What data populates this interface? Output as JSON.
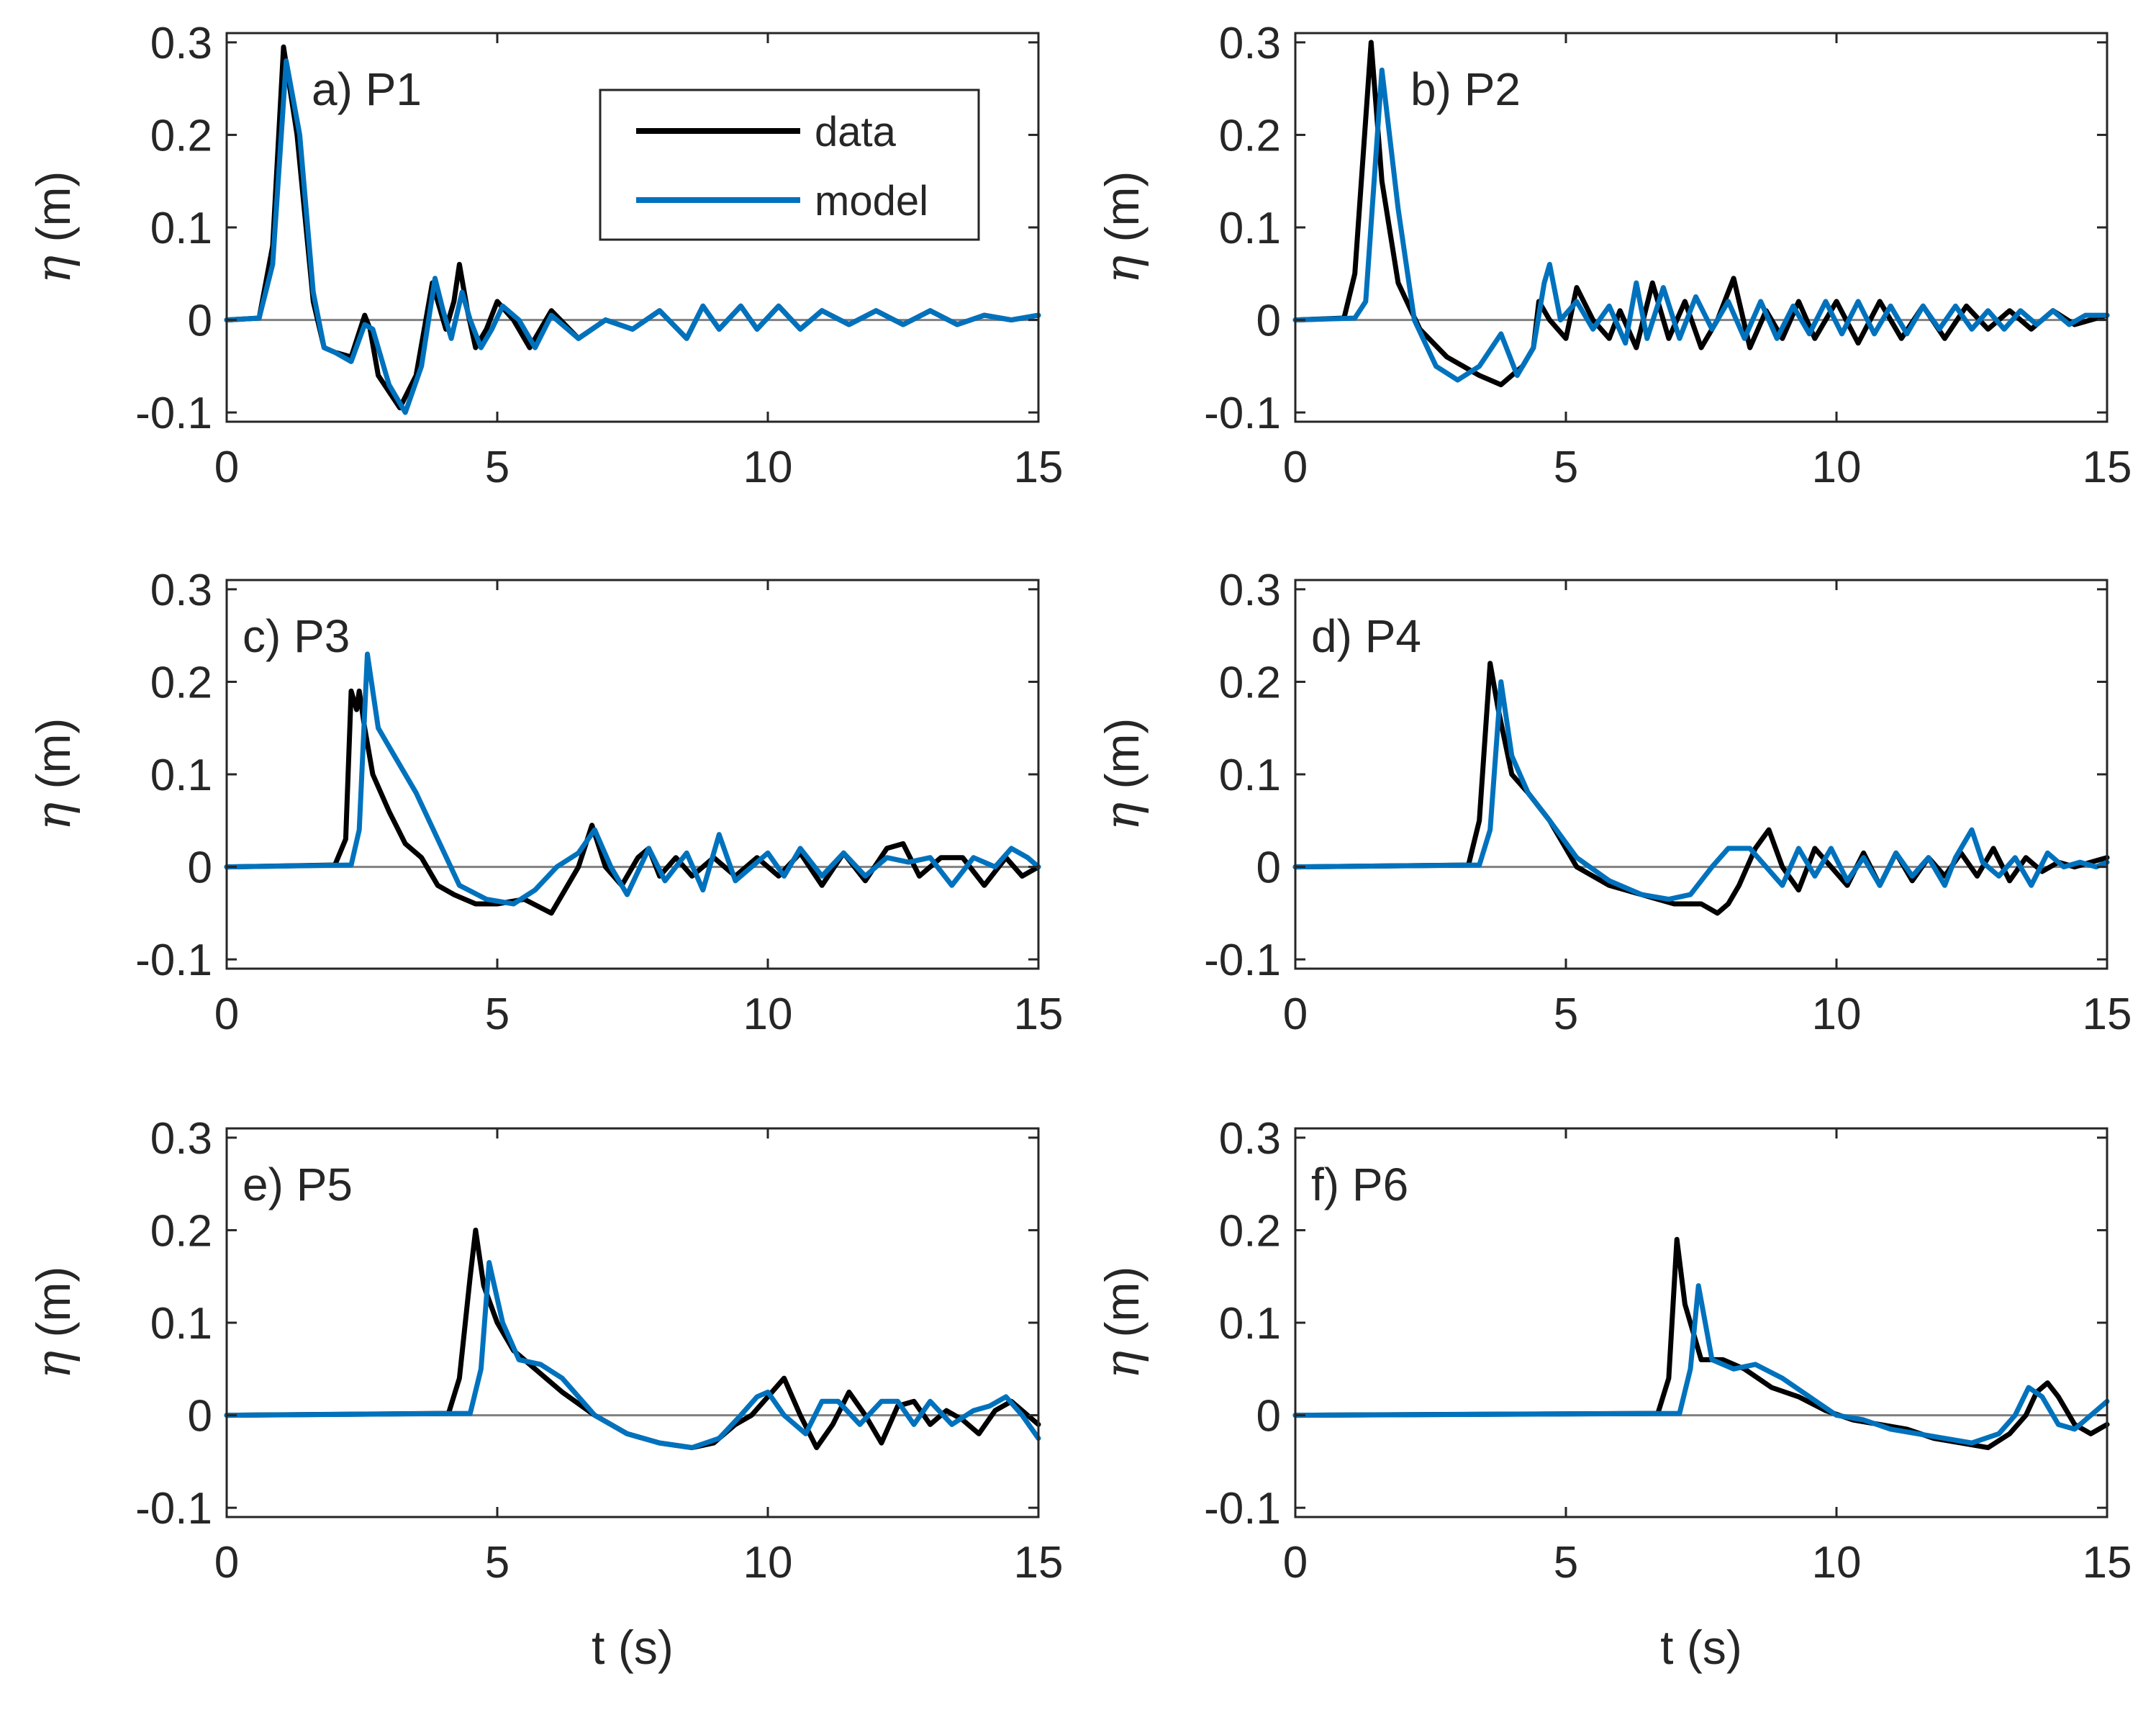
{
  "chart_data": {
    "type": "line",
    "layout": "3x2 grid of subplots",
    "xlabel": "t (s)",
    "ylabel_symbol": "η",
    "ylabel_unit": "(m)",
    "xlim": [
      0,
      15
    ],
    "ylim": [
      -0.11,
      0.31
    ],
    "xticks": [
      "0",
      "5",
      "10",
      "15"
    ],
    "yticks": [
      "-0.1",
      "0",
      "0.1",
      "0.2",
      "0.3"
    ],
    "xtick_values": [
      0,
      5,
      10,
      15
    ],
    "ytick_values": [
      -0.1,
      0,
      0.1,
      0.2,
      0.3
    ],
    "legend": [
      {
        "name": "data",
        "color": "#000000"
      },
      {
        "name": "model",
        "color": "#0072BD"
      }
    ],
    "zero_line_color": "#808080",
    "panels": [
      {
        "label": "a) P1",
        "data": {
          "t": [
            0,
            0.6,
            0.85,
            1.05,
            1.3,
            1.6,
            1.8,
            2.0,
            2.3,
            2.55,
            2.65,
            2.8,
            3.2,
            3.5,
            3.8,
            3.9,
            4.05,
            4.2,
            4.3,
            4.45,
            4.6,
            4.8,
            5.0,
            5.3,
            5.6,
            6.0,
            6.5,
            7.0,
            7.5,
            8.0,
            8.5,
            8.8,
            9.1,
            9.5,
            9.8,
            10.2,
            10.6,
            11.0,
            11.5,
            12.0,
            12.5,
            13.0,
            13.5,
            14.0,
            14.5,
            15.0
          ],
          "eta": [
            0,
            0.002,
            0.08,
            0.295,
            0.2,
            0.02,
            -0.03,
            -0.035,
            -0.04,
            0.005,
            -0.01,
            -0.06,
            -0.095,
            -0.06,
            0.04,
            0.02,
            -0.01,
            0.02,
            0.06,
            0.01,
            -0.03,
            -0.01,
            0.02,
            0.0,
            -0.03,
            0.01,
            -0.02,
            0.0,
            -0.01,
            0.01,
            -0.02,
            0.015,
            -0.01,
            0.015,
            -0.01,
            0.015,
            -0.01,
            0.01,
            -0.005,
            0.01,
            -0.005,
            0.01,
            -0.005,
            0.005,
            0.0,
            0.005
          ]
        },
        "model": {
          "t": [
            0,
            0.6,
            0.85,
            1.1,
            1.35,
            1.6,
            1.8,
            2.0,
            2.3,
            2.55,
            2.7,
            3.0,
            3.3,
            3.6,
            3.85,
            4.0,
            4.15,
            4.35,
            4.5,
            4.7,
            4.9,
            5.1,
            5.4,
            5.7,
            6.0,
            6.5,
            7.0,
            7.5,
            8.0,
            8.5,
            8.8,
            9.1,
            9.5,
            9.8,
            10.2,
            10.6,
            11.0,
            11.5,
            12.0,
            12.5,
            13.0,
            13.5,
            14.0,
            14.5,
            15.0
          ],
          "eta": [
            0,
            0.002,
            0.06,
            0.28,
            0.2,
            0.03,
            -0.03,
            -0.035,
            -0.045,
            -0.005,
            -0.01,
            -0.07,
            -0.1,
            -0.05,
            0.045,
            0.01,
            -0.02,
            0.03,
            0.0,
            -0.03,
            -0.01,
            0.015,
            0.0,
            -0.03,
            0.005,
            -0.02,
            0.0,
            -0.01,
            0.01,
            -0.02,
            0.015,
            -0.01,
            0.015,
            -0.01,
            0.015,
            -0.01,
            0.01,
            -0.005,
            0.01,
            -0.005,
            0.01,
            -0.005,
            0.005,
            0.0,
            0.005
          ]
        }
      },
      {
        "label": "b) P2",
        "data": {
          "t": [
            0,
            0.9,
            1.1,
            1.4,
            1.6,
            1.9,
            2.3,
            2.8,
            3.4,
            3.8,
            4.2,
            4.4,
            4.5,
            4.7,
            5.0,
            5.2,
            5.5,
            5.8,
            6.0,
            6.3,
            6.6,
            6.9,
            7.2,
            7.5,
            7.8,
            8.1,
            8.4,
            8.7,
            9.0,
            9.3,
            9.6,
            10.0,
            10.4,
            10.8,
            11.2,
            11.6,
            12.0,
            12.4,
            12.8,
            13.2,
            13.6,
            14.0,
            14.4,
            15.0
          ],
          "eta": [
            0,
            0.002,
            0.05,
            0.3,
            0.15,
            0.04,
            -0.01,
            -0.04,
            -0.06,
            -0.07,
            -0.05,
            -0.03,
            0.02,
            0.0,
            -0.02,
            0.035,
            0.0,
            -0.02,
            0.01,
            -0.03,
            0.04,
            -0.02,
            0.02,
            -0.03,
            0.0,
            0.045,
            -0.03,
            0.01,
            -0.02,
            0.02,
            -0.02,
            0.02,
            -0.025,
            0.02,
            -0.02,
            0.015,
            -0.02,
            0.015,
            -0.01,
            0.01,
            -0.01,
            0.01,
            -0.005,
            0.005
          ]
        },
        "model": {
          "t": [
            0,
            1.1,
            1.3,
            1.6,
            1.9,
            2.2,
            2.6,
            3.0,
            3.4,
            3.8,
            4.1,
            4.4,
            4.6,
            4.7,
            4.9,
            5.2,
            5.5,
            5.8,
            6.1,
            6.3,
            6.5,
            6.8,
            7.1,
            7.4,
            7.7,
            8.0,
            8.3,
            8.6,
            8.9,
            9.2,
            9.5,
            9.8,
            10.1,
            10.4,
            10.7,
            11.0,
            11.3,
            11.6,
            11.9,
            12.2,
            12.5,
            12.8,
            13.1,
            13.4,
            13.7,
            14.0,
            14.3,
            14.6,
            15.0
          ],
          "eta": [
            0,
            0.002,
            0.02,
            0.27,
            0.12,
            0.0,
            -0.05,
            -0.065,
            -0.05,
            -0.015,
            -0.06,
            -0.03,
            0.04,
            0.06,
            0.0,
            0.02,
            -0.01,
            0.015,
            -0.025,
            0.04,
            -0.02,
            0.035,
            -0.02,
            0.025,
            -0.01,
            0.02,
            -0.02,
            0.02,
            -0.02,
            0.015,
            -0.015,
            0.02,
            -0.015,
            0.02,
            -0.015,
            0.015,
            -0.015,
            0.015,
            -0.01,
            0.015,
            -0.01,
            0.01,
            -0.01,
            0.01,
            -0.005,
            0.01,
            -0.005,
            0.005,
            0.005
          ]
        }
      },
      {
        "label": "c) P3",
        "data": {
          "t": [
            0,
            2.0,
            2.2,
            2.3,
            2.4,
            2.45,
            2.55,
            2.7,
            3.0,
            3.3,
            3.6,
            3.9,
            4.2,
            4.6,
            5.0,
            5.5,
            6.0,
            6.3,
            6.5,
            6.75,
            7.0,
            7.3,
            7.6,
            7.8,
            8.0,
            8.3,
            8.6,
            9.0,
            9.4,
            9.8,
            10.2,
            10.6,
            11.0,
            11.4,
            11.8,
            12.2,
            12.5,
            12.8,
            13.2,
            13.6,
            14.0,
            14.4,
            14.7,
            15.0
          ],
          "eta": [
            0,
            0.002,
            0.03,
            0.19,
            0.17,
            0.19,
            0.15,
            0.1,
            0.06,
            0.025,
            0.01,
            -0.02,
            -0.03,
            -0.04,
            -0.04,
            -0.035,
            -0.05,
            -0.02,
            0.0,
            0.045,
            0.0,
            -0.02,
            0.01,
            0.02,
            -0.01,
            0.01,
            -0.01,
            0.01,
            -0.01,
            0.01,
            -0.01,
            0.015,
            -0.02,
            0.015,
            -0.015,
            0.02,
            0.025,
            -0.01,
            0.01,
            0.01,
            -0.02,
            0.01,
            -0.01,
            0.0
          ]
        },
        "model": {
          "t": [
            0,
            2.3,
            2.45,
            2.6,
            2.8,
            3.1,
            3.5,
            3.9,
            4.3,
            4.8,
            5.3,
            5.7,
            6.1,
            6.5,
            6.8,
            7.1,
            7.4,
            7.8,
            8.1,
            8.5,
            8.8,
            9.1,
            9.4,
            9.7,
            10.0,
            10.3,
            10.6,
            11.0,
            11.4,
            11.8,
            12.2,
            12.6,
            13.0,
            13.4,
            13.8,
            14.2,
            14.5,
            14.8,
            15.0
          ],
          "eta": [
            0,
            0.002,
            0.04,
            0.23,
            0.15,
            0.12,
            0.08,
            0.03,
            -0.02,
            -0.035,
            -0.04,
            -0.025,
            0.0,
            0.015,
            0.04,
            0.0,
            -0.03,
            0.02,
            -0.015,
            0.015,
            -0.025,
            0.035,
            -0.015,
            0.0,
            0.015,
            -0.01,
            0.02,
            -0.01,
            0.015,
            -0.01,
            0.01,
            0.005,
            0.01,
            -0.02,
            0.01,
            0.0,
            0.02,
            0.01,
            0.0
          ]
        }
      },
      {
        "label": "d) P4",
        "data": {
          "t": [
            0,
            3.2,
            3.4,
            3.6,
            3.75,
            4.0,
            4.3,
            4.7,
            5.2,
            5.8,
            6.4,
            7.0,
            7.5,
            7.8,
            8.0,
            8.2,
            8.5,
            8.75,
            9.0,
            9.3,
            9.6,
            9.9,
            10.2,
            10.5,
            10.8,
            11.1,
            11.4,
            11.7,
            12.0,
            12.3,
            12.6,
            12.9,
            13.2,
            13.5,
            13.8,
            14.1,
            14.4,
            14.7,
            15.0
          ],
          "eta": [
            0,
            0.002,
            0.05,
            0.22,
            0.17,
            0.1,
            0.08,
            0.05,
            0.0,
            -0.02,
            -0.03,
            -0.04,
            -0.04,
            -0.05,
            -0.04,
            -0.02,
            0.02,
            0.04,
            0.0,
            -0.025,
            0.02,
            0.0,
            -0.02,
            0.015,
            -0.02,
            0.015,
            -0.015,
            0.01,
            -0.01,
            0.015,
            -0.01,
            0.02,
            -0.015,
            0.01,
            -0.005,
            0.005,
            0.0,
            0.005,
            0.01
          ]
        },
        "model": {
          "t": [
            0,
            3.4,
            3.6,
            3.8,
            4.0,
            4.3,
            4.7,
            5.2,
            5.8,
            6.4,
            6.9,
            7.3,
            7.7,
            8.0,
            8.4,
            8.7,
            9.0,
            9.3,
            9.6,
            9.9,
            10.2,
            10.5,
            10.8,
            11.1,
            11.4,
            11.7,
            12.0,
            12.2,
            12.5,
            12.7,
            13.0,
            13.3,
            13.6,
            13.9,
            14.2,
            14.5,
            14.8,
            15.0
          ],
          "eta": [
            0,
            0.002,
            0.04,
            0.2,
            0.12,
            0.08,
            0.05,
            0.01,
            -0.015,
            -0.03,
            -0.035,
            -0.03,
            0.0,
            0.02,
            0.02,
            0.0,
            -0.02,
            0.02,
            -0.01,
            0.02,
            -0.015,
            0.01,
            -0.02,
            0.015,
            -0.01,
            0.01,
            -0.02,
            0.01,
            0.04,
            0.005,
            -0.01,
            0.01,
            -0.02,
            0.015,
            0.0,
            0.005,
            0.0,
            0.005
          ]
        }
      },
      {
        "label": "e) P5",
        "data": {
          "t": [
            0,
            4.1,
            4.3,
            4.5,
            4.6,
            4.75,
            5.0,
            5.3,
            5.7,
            6.2,
            6.8,
            7.4,
            8.0,
            8.6,
            9.0,
            9.4,
            9.7,
            10.0,
            10.3,
            10.6,
            10.9,
            11.2,
            11.5,
            11.8,
            12.1,
            12.4,
            12.7,
            13.0,
            13.3,
            13.6,
            13.9,
            14.2,
            14.5,
            14.8,
            15.0
          ],
          "eta": [
            0,
            0.002,
            0.04,
            0.15,
            0.2,
            0.14,
            0.1,
            0.07,
            0.05,
            0.025,
            0.0,
            -0.02,
            -0.03,
            -0.035,
            -0.03,
            -0.01,
            0.0,
            0.02,
            0.04,
            0.0,
            -0.035,
            -0.01,
            0.025,
            0.0,
            -0.03,
            0.01,
            0.015,
            -0.01,
            0.005,
            -0.005,
            -0.02,
            0.005,
            0.015,
            0.0,
            -0.01
          ]
        },
        "model": {
          "t": [
            0,
            4.5,
            4.7,
            4.85,
            5.1,
            5.4,
            5.8,
            6.2,
            6.8,
            7.4,
            8.0,
            8.6,
            9.1,
            9.5,
            9.8,
            10.0,
            10.3,
            10.7,
            11.0,
            11.3,
            11.7,
            12.1,
            12.4,
            12.7,
            13.0,
            13.4,
            13.8,
            14.1,
            14.4,
            14.7,
            15.0
          ],
          "eta": [
            0,
            0.002,
            0.05,
            0.165,
            0.1,
            0.06,
            0.055,
            0.04,
            0.0,
            -0.02,
            -0.03,
            -0.035,
            -0.025,
            0.0,
            0.02,
            0.025,
            0.0,
            -0.02,
            0.015,
            0.015,
            -0.01,
            0.015,
            0.015,
            -0.01,
            0.015,
            -0.01,
            0.005,
            0.01,
            0.02,
            0.0,
            -0.025
          ]
        }
      },
      {
        "label": "f) P6",
        "data": {
          "t": [
            0,
            6.7,
            6.9,
            7.05,
            7.2,
            7.5,
            7.9,
            8.3,
            8.8,
            9.3,
            9.8,
            10.3,
            10.8,
            11.3,
            11.8,
            12.3,
            12.8,
            13.2,
            13.5,
            13.7,
            13.9,
            14.1,
            14.4,
            14.7,
            15.0
          ],
          "eta": [
            0,
            0.002,
            0.04,
            0.19,
            0.12,
            0.06,
            0.06,
            0.05,
            0.03,
            0.02,
            0.005,
            -0.005,
            -0.01,
            -0.015,
            -0.025,
            -0.03,
            -0.035,
            -0.02,
            0.0,
            0.025,
            0.035,
            0.02,
            -0.01,
            -0.02,
            -0.01
          ]
        },
        "model": {
          "t": [
            0,
            7.1,
            7.3,
            7.45,
            7.7,
            8.1,
            8.5,
            9.0,
            9.5,
            10.0,
            10.5,
            11.0,
            11.5,
            12.0,
            12.5,
            13.0,
            13.3,
            13.55,
            13.8,
            14.1,
            14.4,
            14.7,
            15.0
          ],
          "eta": [
            0,
            0.002,
            0.05,
            0.14,
            0.06,
            0.05,
            0.055,
            0.04,
            0.02,
            0.0,
            -0.005,
            -0.015,
            -0.02,
            -0.025,
            -0.03,
            -0.02,
            0.0,
            0.03,
            0.02,
            -0.01,
            -0.015,
            0.0,
            0.015
          ]
        }
      }
    ]
  }
}
